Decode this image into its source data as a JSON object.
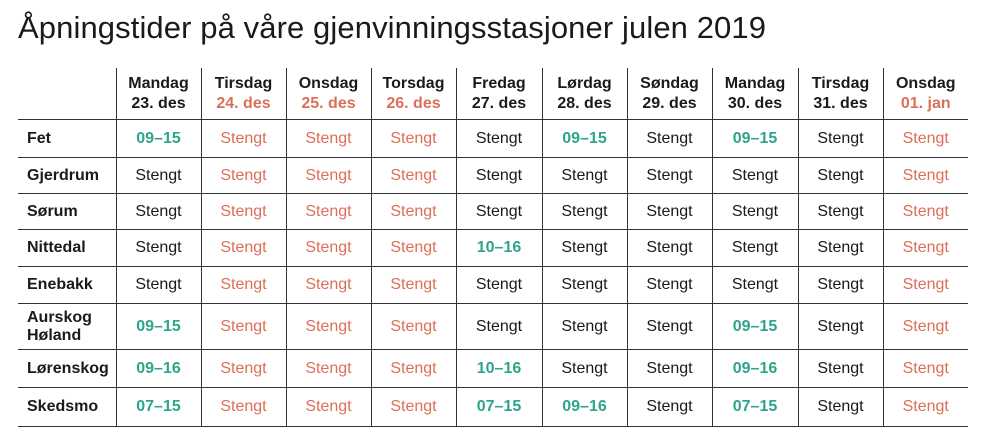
{
  "title": "Åpningstider på våre gjenvinningsstasjoner julen 2019",
  "colors": {
    "open": "#2fa48c",
    "holiday": "#dd6e57",
    "text": "#1a1a1a"
  },
  "days": [
    {
      "name": "Mandag",
      "date": "23. des",
      "holiday": false
    },
    {
      "name": "Tirsdag",
      "date": "24. des",
      "holiday": true
    },
    {
      "name": "Onsdag",
      "date": "25. des",
      "holiday": true
    },
    {
      "name": "Torsdag",
      "date": "26. des",
      "holiday": true
    },
    {
      "name": "Fredag",
      "date": "27. des",
      "holiday": false
    },
    {
      "name": "Lørdag",
      "date": "28. des",
      "holiday": false
    },
    {
      "name": "Søndag",
      "date": "29. des",
      "holiday": false
    },
    {
      "name": "Mandag",
      "date": "30. des",
      "holiday": false
    },
    {
      "name": "Tirsdag",
      "date": "31. des",
      "holiday": false
    },
    {
      "name": "Onsdag",
      "date": "01. jan",
      "holiday": true
    }
  ],
  "stations": [
    {
      "name": "Fet",
      "hours": [
        "09–15",
        "Stengt",
        "Stengt",
        "Stengt",
        "Stengt",
        "09–15",
        "Stengt",
        "09–15",
        "Stengt",
        "Stengt"
      ]
    },
    {
      "name": "Gjerdrum",
      "hours": [
        "Stengt",
        "Stengt",
        "Stengt",
        "Stengt",
        "Stengt",
        "Stengt",
        "Stengt",
        "Stengt",
        "Stengt",
        "Stengt"
      ]
    },
    {
      "name": "Sørum",
      "hours": [
        "Stengt",
        "Stengt",
        "Stengt",
        "Stengt",
        "Stengt",
        "Stengt",
        "Stengt",
        "Stengt",
        "Stengt",
        "Stengt"
      ]
    },
    {
      "name": "Nittedal",
      "hours": [
        "Stengt",
        "Stengt",
        "Stengt",
        "Stengt",
        "10–16",
        "Stengt",
        "Stengt",
        "Stengt",
        "Stengt",
        "Stengt"
      ]
    },
    {
      "name": "Enebakk",
      "hours": [
        "Stengt",
        "Stengt",
        "Stengt",
        "Stengt",
        "Stengt",
        "Stengt",
        "Stengt",
        "Stengt",
        "Stengt",
        "Stengt"
      ]
    },
    {
      "name": "Aurskog Høland",
      "hours": [
        "09–15",
        "Stengt",
        "Stengt",
        "Stengt",
        "Stengt",
        "Stengt",
        "Stengt",
        "09–15",
        "Stengt",
        "Stengt"
      ]
    },
    {
      "name": "Lørenskog",
      "hours": [
        "09–16",
        "Stengt",
        "Stengt",
        "Stengt",
        "10–16",
        "Stengt",
        "Stengt",
        "09–16",
        "Stengt",
        "Stengt"
      ]
    },
    {
      "name": "Skedsmo",
      "hours": [
        "07–15",
        "Stengt",
        "Stengt",
        "Stengt",
        "07–15",
        "09–16",
        "Stengt",
        "07–15",
        "Stengt",
        "Stengt"
      ]
    }
  ]
}
